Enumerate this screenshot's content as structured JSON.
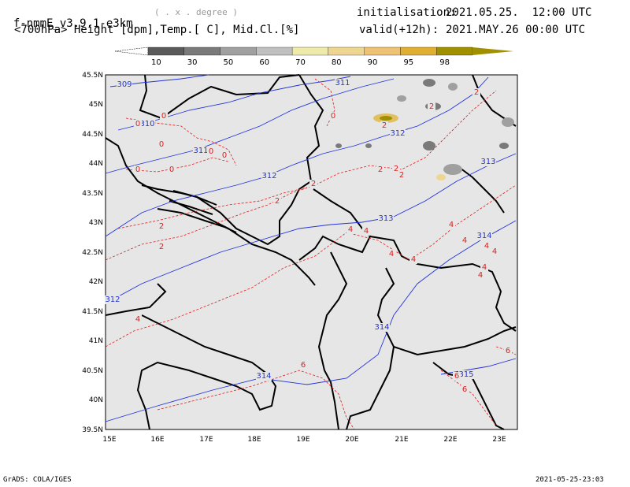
{
  "header": {
    "model": "f-nmmE_v3.9.1-e3km",
    "projection": "( . x . degree )",
    "fields": "<700hPa> Height [dpm],Temp.[ C], Mid.Cl.[%]",
    "init_label": "initialisation:",
    "init_time": "2021.05.25.  12:00 UTC",
    "valid_label": "valid(+12h):",
    "valid_time": "2021.MAY.26 00:00 UTC"
  },
  "colorbar": {
    "labels": [
      "10",
      "30",
      "50",
      "60",
      "70",
      "80",
      "90",
      "95",
      "98"
    ],
    "colors": [
      "#5a5a5a",
      "#7a7a7a",
      "#a0a0a0",
      "#c0c0c0",
      "#eeeaaa",
      "#eed690",
      "#eec272",
      "#e0ae30",
      "#a09000"
    ]
  },
  "map": {
    "lat_labels": [
      "45.5N",
      "45N",
      "44.5N",
      "44N",
      "43.5N",
      "43N",
      "42.5N",
      "42N",
      "41.5N",
      "41N",
      "40.5N",
      "40N",
      "39.5N"
    ],
    "lon_labels": [
      "15E",
      "16E",
      "17E",
      "18E",
      "19E",
      "20E",
      "21E",
      "22E",
      "23E"
    ],
    "height_labels": [
      "309",
      "311",
      "310",
      "311",
      "312",
      "312",
      "313",
      "313",
      "314",
      "312",
      "314",
      "314",
      "315"
    ],
    "temp_labels": [
      "0",
      "0",
      "0",
      "0",
      "0",
      "0",
      "0",
      "0",
      "2",
      "2",
      "2",
      "2",
      "2",
      "2",
      "2",
      "2",
      "2",
      "2",
      "4",
      "4",
      "4",
      "4",
      "4",
      "4",
      "4",
      "4",
      "4",
      "4",
      "4",
      "6",
      "6",
      "6",
      "6"
    ]
  },
  "footer": {
    "left": "GrADS: COLA/IGES",
    "right": "2021-05-25-23:03"
  },
  "colors": {
    "height_contour": "#2233dd",
    "temp_contour": "#e02020",
    "land_bg": "#e6e6e6",
    "border": "#000000"
  }
}
